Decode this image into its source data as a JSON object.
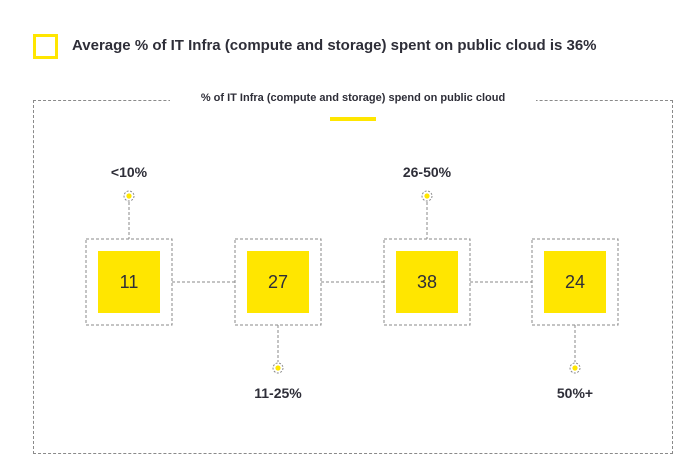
{
  "header": {
    "title": "Average % of IT Infra (compute and storage) spent on public cloud is 36%"
  },
  "colors": {
    "accent": "#ffe600",
    "text": "#2e2e38",
    "dash": "#8a8a8a"
  },
  "chart_data": {
    "type": "bar",
    "title": "% of IT Infra (compute and storage) spend on public cloud",
    "categories": [
      "<10%",
      "11-25%",
      "26-50%",
      "50%+"
    ],
    "values": [
      11,
      27,
      38,
      24
    ],
    "label_positions": [
      "top",
      "bottom",
      "top",
      "bottom"
    ]
  }
}
